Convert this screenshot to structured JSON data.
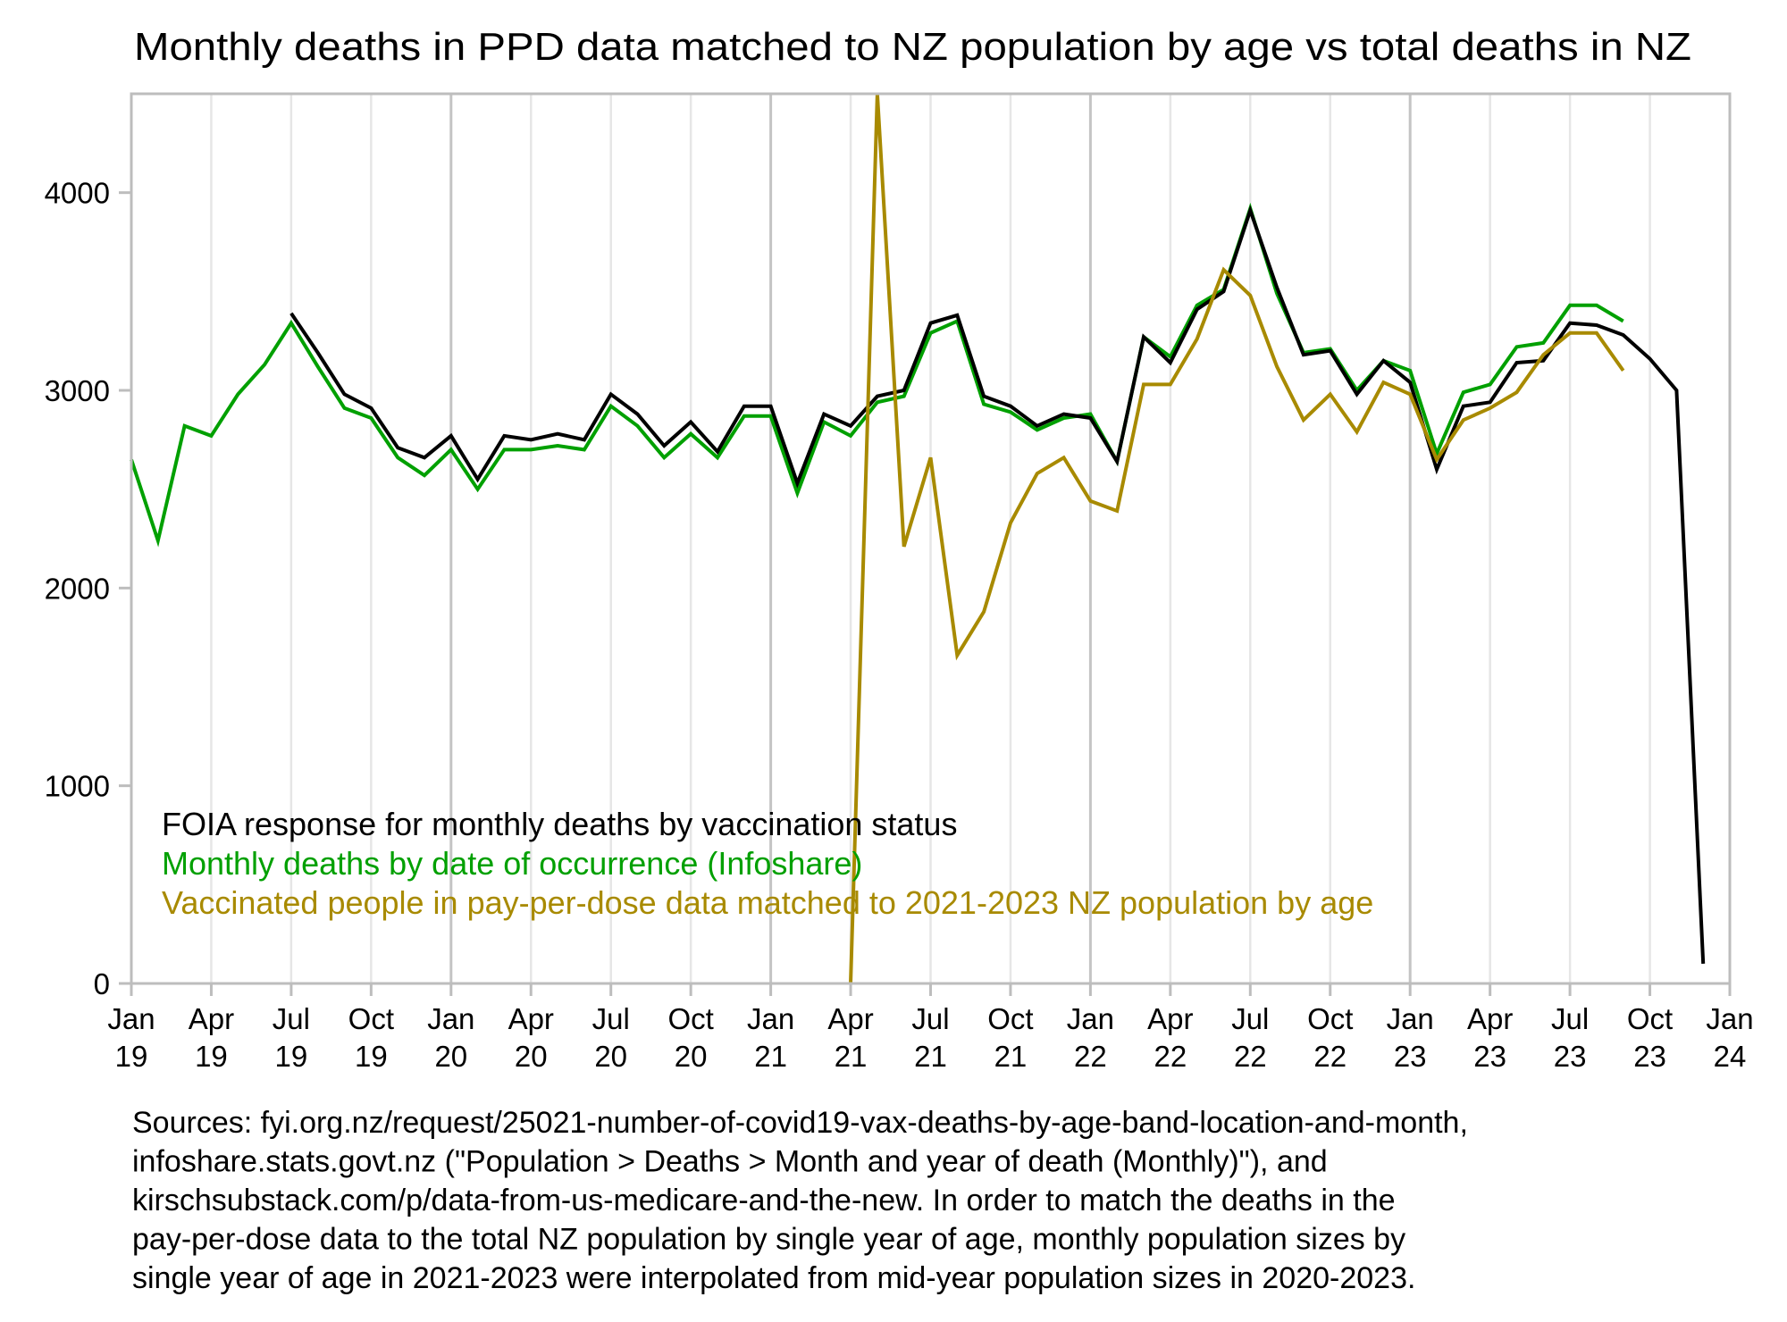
{
  "chart_data": {
    "type": "line",
    "title": "Monthly deaths in PPD data matched to NZ population by age vs total deaths in NZ",
    "xlabel": "",
    "ylabel": "",
    "ylim": [
      0,
      4500
    ],
    "yticks": [
      0,
      1000,
      2000,
      3000,
      4000
    ],
    "ytick_labels": [
      "0",
      "1000",
      "2000",
      "3000",
      "4000"
    ],
    "x_start": "2019-01",
    "x_months": 60,
    "xticks": [
      {
        "month": 0,
        "label": [
          "Jan",
          "19"
        ]
      },
      {
        "month": 3,
        "label": [
          "Apr",
          "19"
        ]
      },
      {
        "month": 6,
        "label": [
          "Jul",
          "19"
        ]
      },
      {
        "month": 9,
        "label": [
          "Oct",
          "19"
        ]
      },
      {
        "month": 12,
        "label": [
          "Jan",
          "20"
        ]
      },
      {
        "month": 15,
        "label": [
          "Apr",
          "20"
        ]
      },
      {
        "month": 18,
        "label": [
          "Jul",
          "20"
        ]
      },
      {
        "month": 21,
        "label": [
          "Oct",
          "20"
        ]
      },
      {
        "month": 24,
        "label": [
          "Jan",
          "21"
        ]
      },
      {
        "month": 27,
        "label": [
          "Apr",
          "21"
        ]
      },
      {
        "month": 30,
        "label": [
          "Jul",
          "21"
        ]
      },
      {
        "month": 33,
        "label": [
          "Oct",
          "21"
        ]
      },
      {
        "month": 36,
        "label": [
          "Jan",
          "22"
        ]
      },
      {
        "month": 39,
        "label": [
          "Apr",
          "22"
        ]
      },
      {
        "month": 42,
        "label": [
          "Jul",
          "22"
        ]
      },
      {
        "month": 45,
        "label": [
          "Oct",
          "22"
        ]
      },
      {
        "month": 48,
        "label": [
          "Jan",
          "23"
        ]
      },
      {
        "month": 51,
        "label": [
          "Apr",
          "23"
        ]
      },
      {
        "month": 54,
        "label": [
          "Jul",
          "23"
        ]
      },
      {
        "month": 57,
        "label": [
          "Oct",
          "23"
        ]
      },
      {
        "month": 60,
        "label": [
          "Jan",
          "24"
        ]
      }
    ],
    "grid": true,
    "legend_placement": "bottom-left",
    "series": [
      {
        "name": "FOIA response for monthly deaths by vaccination status",
        "color": "#000000",
        "start_month": 6,
        "values": [
          3390,
          3190,
          2980,
          2910,
          2710,
          2660,
          2770,
          2550,
          2770,
          2750,
          2780,
          2750,
          2980,
          2880,
          2720,
          2840,
          2690,
          2920,
          2920,
          2530,
          2880,
          2820,
          2970,
          3000,
          3340,
          3380,
          2970,
          2920,
          2820,
          2880,
          2860,
          2640,
          3270,
          3140,
          3410,
          3500,
          3910,
          3520,
          3180,
          3200,
          2980,
          3150,
          3040,
          2600,
          2920,
          2940,
          3140,
          3150,
          3340,
          3330,
          3280,
          3160,
          3000,
          100
        ]
      },
      {
        "name": "Monthly deaths by date of occurrence (Infoshare)",
        "color": "#00a000",
        "start_month": 0,
        "values": [
          2650,
          2240,
          2820,
          2770,
          2980,
          3130,
          3340,
          3120,
          2910,
          2860,
          2660,
          2570,
          2700,
          2500,
          2700,
          2700,
          2720,
          2700,
          2920,
          2820,
          2660,
          2780,
          2660,
          2870,
          2870,
          2480,
          2840,
          2770,
          2940,
          2970,
          3290,
          3350,
          2930,
          2890,
          2800,
          2860,
          2880,
          2640,
          3270,
          3170,
          3430,
          3510,
          3920,
          3490,
          3190,
          3210,
          3000,
          3150,
          3100,
          2680,
          2990,
          3030,
          3220,
          3240,
          3430,
          3430,
          3350
        ]
      },
      {
        "name": "Vaccinated people in pay-per-dose data matched to 2021-2023 NZ population by age",
        "color": "#a88a00",
        "start_month": 27,
        "values": [
          0,
          4500,
          2210,
          2660,
          1660,
          1880,
          2330,
          2580,
          2660,
          2440,
          2390,
          3030,
          3030,
          3260,
          3610,
          3480,
          3120,
          2850,
          2980,
          2790,
          3040,
          2980,
          2650,
          2850,
          2910,
          2990,
          3180,
          3290,
          3290,
          3100
        ]
      }
    ],
    "sources": [
      "Sources: fyi.org.nz/request/25021-number-of-covid19-vax-deaths-by-age-band-location-and-month,",
      "infoshare.stats.govt.nz (\"Population > Deaths > Month and year of death (Monthly)\"), and",
      "kirschsubstack.com/p/data-from-us-medicare-and-the-new. In order to match the deaths in the",
      "pay-per-dose data to the total NZ population by single year of age, monthly population sizes by",
      "single year of age in 2021-2023 were interpolated from mid-year population sizes in 2020-2023."
    ]
  }
}
